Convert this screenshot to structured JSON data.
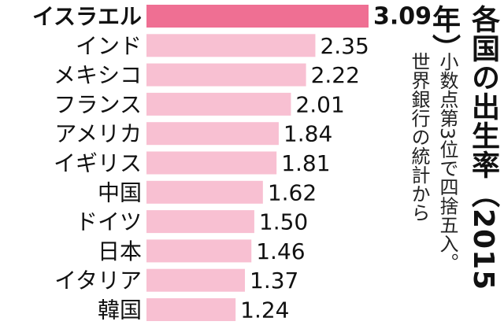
{
  "title": "各国の出生率（2015年）",
  "note": "小数点第3位で四捨五入。\n世界銀行の統計から",
  "colors": {
    "highlight": "#ef6f93",
    "bar": "#f8c0d2",
    "text": "#111111"
  },
  "chart_data": {
    "type": "bar",
    "orientation": "horizontal",
    "title": "各国の出生率（2015年）",
    "note": "小数点第3位で四捨五入。世界銀行の統計から",
    "categories": [
      "イスラエル",
      "インド",
      "メキシコ",
      "フランス",
      "アメリカ",
      "イギリス",
      "中国",
      "ドイツ",
      "日本",
      "イタリア",
      "韓国"
    ],
    "values": [
      3.09,
      2.35,
      2.22,
      2.01,
      1.84,
      1.81,
      1.62,
      1.5,
      1.46,
      1.37,
      1.24
    ],
    "value_labels": [
      "3.09",
      "2.35",
      "2.22",
      "2.01",
      "1.84",
      "1.81",
      "1.62",
      "1.50",
      "1.46",
      "1.37",
      "1.24"
    ],
    "highlight_index": 0,
    "xlim": [
      0,
      3.09
    ],
    "grid": false,
    "legend": "none"
  }
}
